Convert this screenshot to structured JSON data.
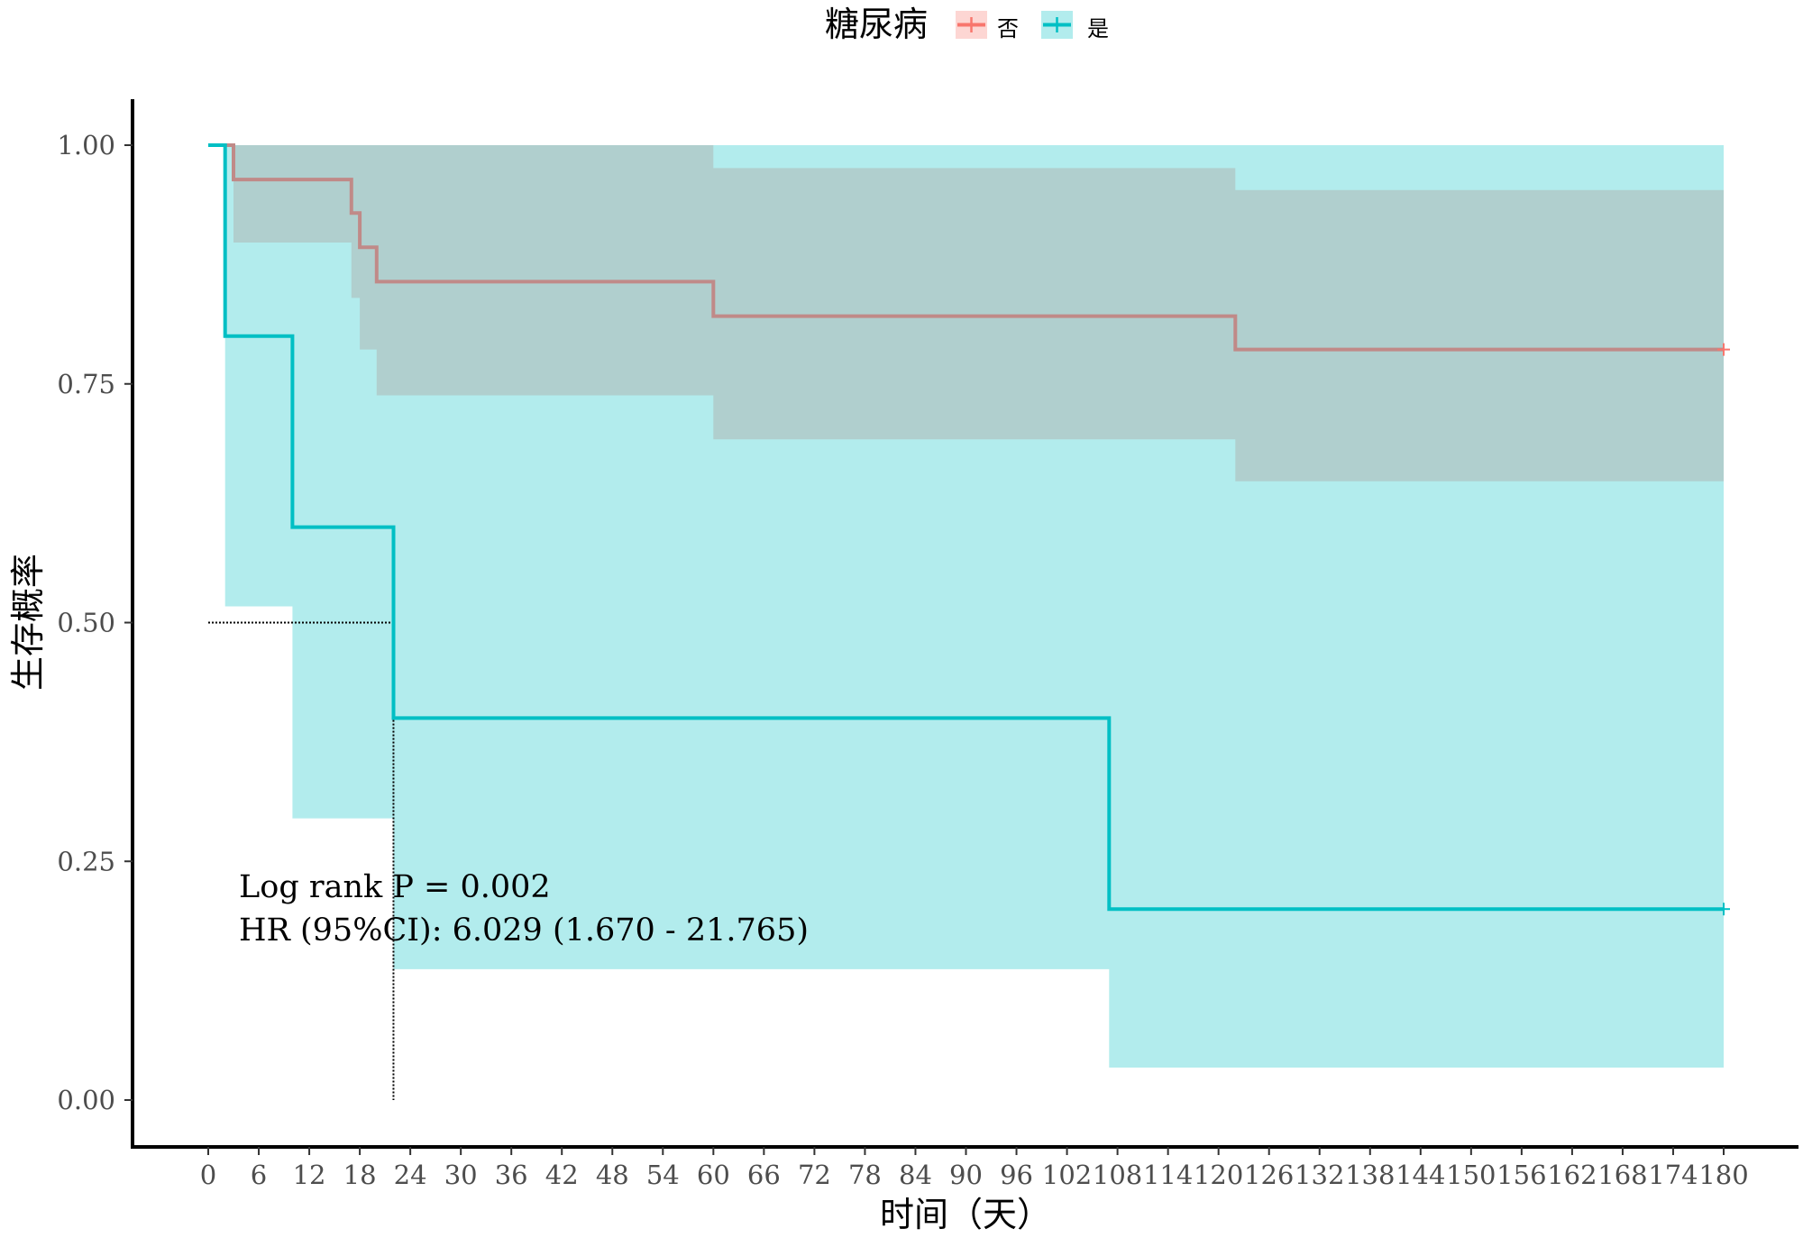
{
  "chart_data": {
    "type": "line",
    "subtype": "kaplan-meier",
    "title": "",
    "xlabel": "时间（天）",
    "ylabel": "生存概率",
    "xlim": [
      0,
      180
    ],
    "ylim": [
      0,
      1
    ],
    "x_ticks": [
      0,
      6,
      12,
      18,
      24,
      30,
      36,
      42,
      48,
      54,
      60,
      66,
      72,
      78,
      84,
      90,
      96,
      102,
      108,
      114,
      120,
      126,
      132,
      138,
      144,
      150,
      156,
      162,
      168,
      174,
      180
    ],
    "y_ticks": [
      "0.00",
      "0.25",
      "0.50",
      "0.75",
      "1.00"
    ],
    "grid": false,
    "legend": {
      "title": "糖尿病",
      "position": "top",
      "entries": [
        {
          "label": "否",
          "color": "#F8766D"
        },
        {
          "label": "是",
          "color": "#00BFC4"
        }
      ]
    },
    "series": [
      {
        "name": "否",
        "color": "#F8766D",
        "line_color": "#C08A88",
        "fill_color": "#F8766D",
        "steps": [
          [
            0,
            1.0
          ],
          [
            3,
            0.964
          ],
          [
            17,
            0.929
          ],
          [
            18,
            0.893
          ],
          [
            20,
            0.857
          ],
          [
            60,
            0.821
          ],
          [
            122,
            0.786
          ],
          [
            180,
            0.786
          ]
        ],
        "ci": [
          [
            0,
            1.0,
            1.0
          ],
          [
            3,
            0.898,
            1.0
          ],
          [
            17,
            0.84,
            1.0
          ],
          [
            18,
            0.786,
            1.0
          ],
          [
            20,
            0.738,
            1.0
          ],
          [
            60,
            0.692,
            0.976
          ],
          [
            122,
            0.648,
            0.953
          ],
          [
            180,
            0.648,
            0.953
          ]
        ],
        "censor": [
          180
        ]
      },
      {
        "name": "是",
        "color": "#00BFC4",
        "line_color": "#00BFC4",
        "fill_color": "#00BFC4",
        "steps": [
          [
            0,
            1.0
          ],
          [
            2,
            0.8
          ],
          [
            10,
            0.6
          ],
          [
            22,
            0.4
          ],
          [
            107,
            0.2
          ],
          [
            180,
            0.2
          ]
        ],
        "ci": [
          [
            0,
            1.0,
            1.0
          ],
          [
            2,
            0.517,
            1.0
          ],
          [
            10,
            0.295,
            1.0
          ],
          [
            22,
            0.137,
            1.0
          ],
          [
            107,
            0.034,
            1.0
          ],
          [
            180,
            0.034,
            1.0
          ]
        ],
        "censor": [
          180
        ]
      }
    ],
    "median_line": {
      "y": 0.5,
      "x": 22
    },
    "annotations": [
      {
        "text": "Log rank P = 0.002",
        "x": 3.7,
        "y": 0.22
      },
      {
        "text": "HR (95%CI): 6.029 (1.670 - 21.765)",
        "x": 3.7,
        "y": 0.174
      }
    ]
  }
}
